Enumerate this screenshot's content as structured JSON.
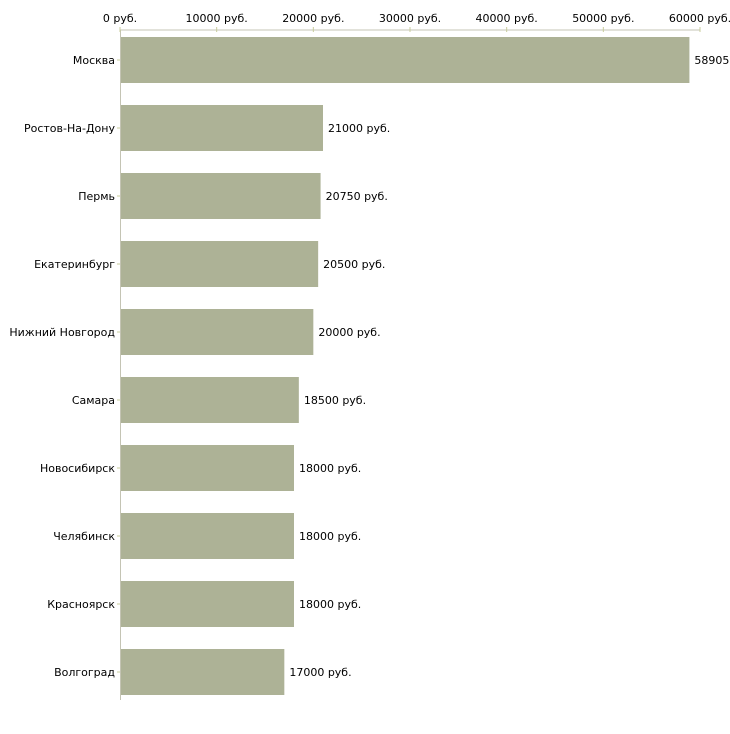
{
  "chart_data": {
    "type": "bar",
    "orientation": "horizontal",
    "title": "",
    "xlabel": "",
    "ylabel": "",
    "xlim": [
      0,
      60000
    ],
    "ticks": [
      0,
      10000,
      20000,
      30000,
      40000,
      50000,
      60000
    ],
    "tick_labels": [
      "0 руб.",
      "10000 руб.",
      "20000 руб.",
      "30000 руб.",
      "40000 руб.",
      "50000 руб.",
      "60000 руб."
    ],
    "categories": [
      "Москва",
      "Ростов-На-Дону",
      "Пермь",
      "Екатеринбург",
      "Нижний Новгород",
      "Самара",
      "Новосибирск",
      "Челябинск",
      "Красноярск",
      "Волгоград"
    ],
    "values": [
      58905,
      21000,
      20750,
      20500,
      20000,
      18500,
      18000,
      18000,
      18000,
      17000
    ],
    "value_labels": [
      "58905",
      "21000 руб.",
      "20750 руб.",
      "20500 руб.",
      "20000 руб.",
      "18500 руб.",
      "18000 руб.",
      "18000 руб.",
      "18000 руб.",
      "17000 руб."
    ],
    "colors": {
      "bar": "#adb296",
      "axis": "#c4c4b4",
      "tick": "#c8cc9c"
    },
    "grid": false,
    "legend": "none"
  }
}
